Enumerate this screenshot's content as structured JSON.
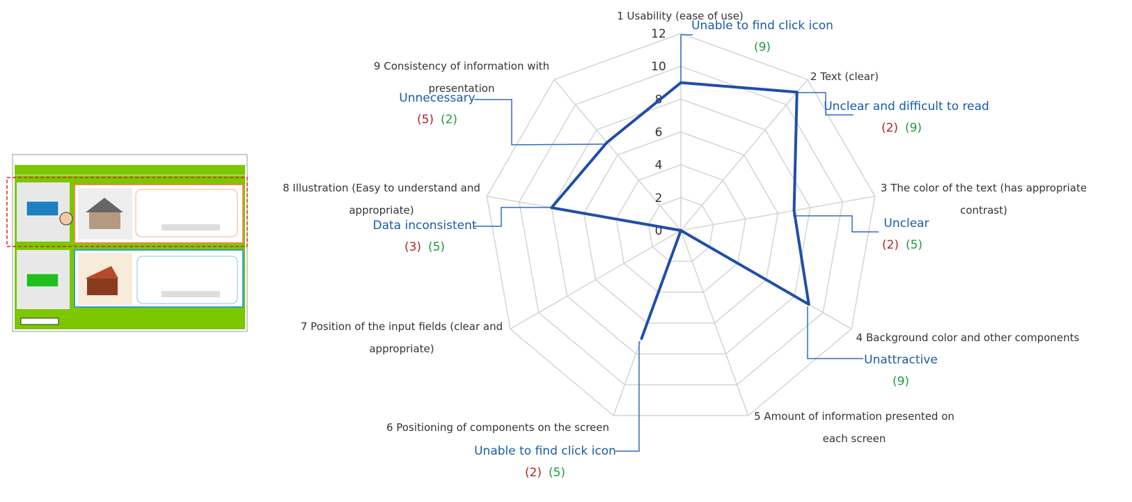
{
  "chart_data": {
    "type": "radar",
    "axes": [
      "1 Usability (ease of use)",
      "2 Text (clear)",
      "3 The color of the text (has appropriate contrast)",
      "4 Background color and other components",
      "5 Amount of information presented on each screen",
      "6 Positioning of components on the screen",
      "7 Position of the input fields (clear and appropriate)",
      "8 Illustration (Easy to understand and appropriate)",
      "9 Consistency of information with presentation"
    ],
    "values": [
      9,
      11,
      7,
      9,
      0,
      7,
      0,
      8,
      7
    ],
    "color": "#1f4ea8",
    "rlim": [
      0,
      12
    ],
    "yticks": [
      0,
      2,
      4,
      6,
      8,
      10,
      12
    ],
    "grid": true,
    "annotations": [
      {
        "text": "Unable to find click icon",
        "counts": [
          {
            "label": "(9)",
            "color": "#1e9a3c"
          }
        ]
      },
      {
        "text": "Unclear and difficult to read",
        "counts": [
          {
            "label": "(2)",
            "color": "#b22222"
          },
          {
            "label": "(9)",
            "color": "#1e9a3c"
          }
        ]
      },
      {
        "text": "Unclear",
        "counts": [
          {
            "label": "(2)",
            "color": "#b22222"
          },
          {
            "label": "(5)",
            "color": "#1e9a3c"
          }
        ]
      },
      {
        "text": "Unattractive",
        "counts": [
          {
            "label": "(9)",
            "color": "#1e9a3c"
          }
        ]
      },
      {
        "text": "Unable to find click icon",
        "counts": [
          {
            "label": "(2)",
            "color": "#b22222"
          },
          {
            "label": "(5)",
            "color": "#1e9a3c"
          }
        ]
      },
      {
        "text": "Data inconsistent",
        "counts": [
          {
            "label": "(3)",
            "color": "#b22222"
          },
          {
            "label": "(5)",
            "color": "#1e9a3c"
          }
        ]
      },
      {
        "text": "Unnecessary",
        "counts": [
          {
            "label": "(5)",
            "color": "#b22222"
          },
          {
            "label": "(2)",
            "color": "#1e9a3c"
          }
        ]
      }
    ]
  }
}
